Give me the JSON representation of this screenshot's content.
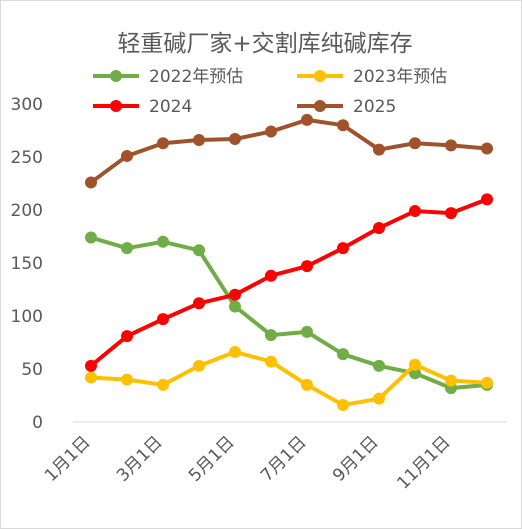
{
  "chart_data": {
    "type": "line",
    "title": "轻重碱厂家+交割库纯碱库存",
    "xlabel": "",
    "ylabel": "",
    "ylim": [
      0,
      300
    ],
    "yticks": [
      0,
      50,
      100,
      150,
      200,
      250,
      300
    ],
    "grid": false,
    "legend": "top",
    "x_tick_labels": [
      "1月1日",
      "3月1日",
      "5月1日",
      "7月1日",
      "9月1日",
      "11月1日"
    ],
    "x_tick_positions": [
      0,
      2,
      4,
      6,
      8,
      10
    ],
    "series": [
      {
        "name": "2022年预估",
        "color": "#70ad47",
        "values": [
          174,
          164,
          170,
          162,
          109,
          82,
          85,
          64,
          53,
          46,
          32,
          35
        ]
      },
      {
        "name": "2023年预估",
        "color": "#ffc000",
        "values": [
          42,
          40,
          35,
          53,
          66,
          57,
          35,
          16,
          22,
          54,
          39,
          37
        ]
      },
      {
        "name": "2024",
        "color": "#ff0000",
        "values": [
          53,
          81,
          97,
          112,
          120,
          138,
          147,
          164,
          183,
          199,
          197,
          210
        ]
      },
      {
        "name": "2025",
        "color": "#a0522d",
        "values": [
          226,
          251,
          263,
          266,
          267,
          274,
          285,
          280,
          257,
          263,
          261,
          258
        ]
      }
    ]
  }
}
